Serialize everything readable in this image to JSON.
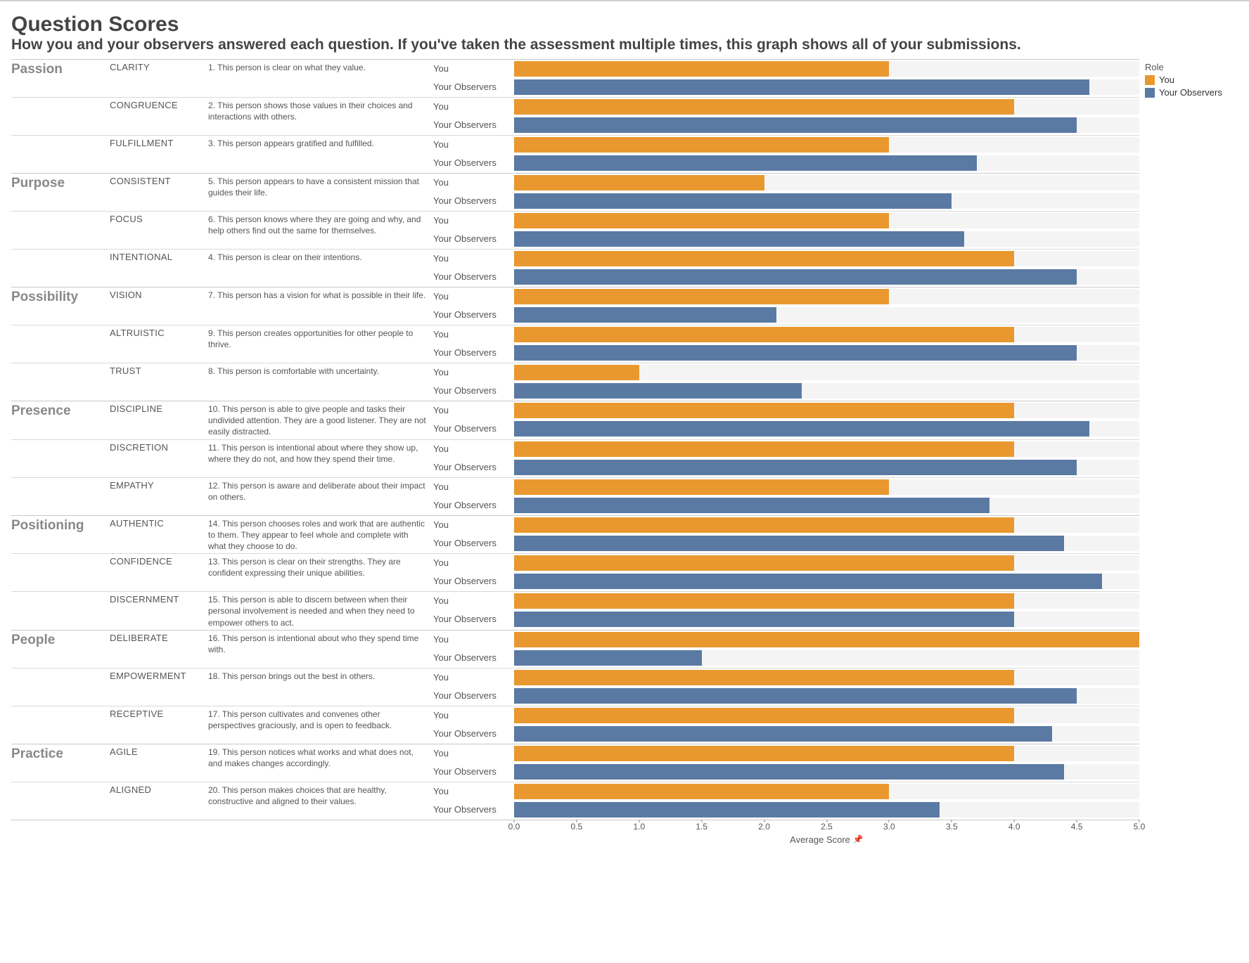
{
  "title": "Question Scores",
  "subtitle": "How you and your observers answered each question. If you've taken the assessment multiple times, this graph shows all of your submissions.",
  "legend": {
    "title": "Role",
    "items": [
      {
        "label": "You",
        "color": "#e9982f"
      },
      {
        "label": "Your Observers",
        "color": "#5a7aa3"
      }
    ]
  },
  "roleLabels": {
    "you": "You",
    "obs": "Your Observers"
  },
  "colors": {
    "you": "#e9982f",
    "obs": "#5a7aa3",
    "trackBg": "#f4f4f4",
    "pageBg": "#ffffff",
    "border": "#c8c8c8",
    "subBorder": "#d9d9d9",
    "textMuted": "#888888"
  },
  "axis": {
    "title": "Average Score",
    "min": 0.0,
    "max": 5.0,
    "ticks": [
      0.0,
      0.5,
      1.0,
      1.5,
      2.0,
      2.5,
      3.0,
      3.5,
      4.0,
      4.5,
      5.0
    ],
    "tick_fontsize": 12,
    "title_fontsize": 13
  },
  "chart": {
    "type": "grouped-horizontal-bar",
    "categories": [
      {
        "name": "Passion",
        "subs": [
          {
            "name": "CLARITY",
            "q": "1. This person is clear on what they value.",
            "you": 3.0,
            "obs": 4.6
          },
          {
            "name": "CONGRUENCE",
            "q": "2. This person shows those values in their choices and interactions with others.",
            "you": 4.0,
            "obs": 4.5
          },
          {
            "name": "FULFILLMENT",
            "q": "3. This person appears gratified and fulfilled.",
            "you": 3.0,
            "obs": 3.7
          }
        ]
      },
      {
        "name": "Purpose",
        "subs": [
          {
            "name": "CONSISTENT",
            "q": "5. This person appears to have a consistent mission that guides their life.",
            "you": 2.0,
            "obs": 3.5
          },
          {
            "name": "FOCUS",
            "q": "6. This person knows where they are going and why, and help others find out the same for themselves.",
            "you": 3.0,
            "obs": 3.6
          },
          {
            "name": "INTENTIONAL",
            "q": "4. This person is clear on their intentions.",
            "you": 4.0,
            "obs": 4.5
          }
        ]
      },
      {
        "name": "Possibility",
        "subs": [
          {
            "name": "VISION",
            "q": "7. This person has a vision for what is possible in their life.",
            "you": 3.0,
            "obs": 2.1
          },
          {
            "name": "ALTRUISTIC",
            "q": "9. This person creates opportunities for other people to thrive.",
            "you": 4.0,
            "obs": 4.5
          },
          {
            "name": "TRUST",
            "q": "8. This person is comfortable with uncertainty.",
            "you": 1.0,
            "obs": 2.3
          }
        ]
      },
      {
        "name": "Presence",
        "subs": [
          {
            "name": "DISCIPLINE",
            "q": "10. This person is able to give people and tasks their undivided attention. They are a good listener. They are not easily distracted.",
            "you": 4.0,
            "obs": 4.6
          },
          {
            "name": "DISCRETION",
            "q": "11. This person is intentional about where they show up, where they do not, and how they spend their time.",
            "you": 4.0,
            "obs": 4.5
          },
          {
            "name": "EMPATHY",
            "q": "12. This person is aware and deliberate about their impact on others.",
            "you": 3.0,
            "obs": 3.8
          }
        ]
      },
      {
        "name": "Positioning",
        "subs": [
          {
            "name": "AUTHENTIC",
            "q": "14. This person chooses roles and work that are authentic to them. They appear to feel whole and complete with what they choose to do.",
            "you": 4.0,
            "obs": 4.4
          },
          {
            "name": "CONFIDENCE",
            "q": "13. This person is clear on their strengths. They are confident expressing their unique abilities.",
            "you": 4.0,
            "obs": 4.7
          },
          {
            "name": "DISCERNMENT",
            "q": "15. This person is able to discern between when their personal involvement is needed and when they need to empower others to act.",
            "you": 4.0,
            "obs": 4.0
          }
        ]
      },
      {
        "name": "People",
        "subs": [
          {
            "name": "DELIBERATE",
            "q": "16. This person is intentional about who they spend time with.",
            "you": 5.0,
            "obs": 1.5
          },
          {
            "name": "EMPOWERMENT",
            "q": "18. This person brings out the best in others.",
            "you": 4.0,
            "obs": 4.5
          },
          {
            "name": "RECEPTIVE",
            "q": "17. This person cultivates and convenes other perspectives graciously, and is open to feedback.",
            "you": 4.0,
            "obs": 4.3
          }
        ]
      },
      {
        "name": "Practice",
        "subs": [
          {
            "name": "AGILE",
            "q": "19. This person notices what works and what does not, and makes changes accordingly.",
            "you": 4.0,
            "obs": 4.4
          },
          {
            "name": "ALIGNED",
            "q": "20. This person makes choices that are healthy, constructive and aligned to their values.",
            "you": 3.0,
            "obs": 3.4
          }
        ]
      }
    ]
  }
}
